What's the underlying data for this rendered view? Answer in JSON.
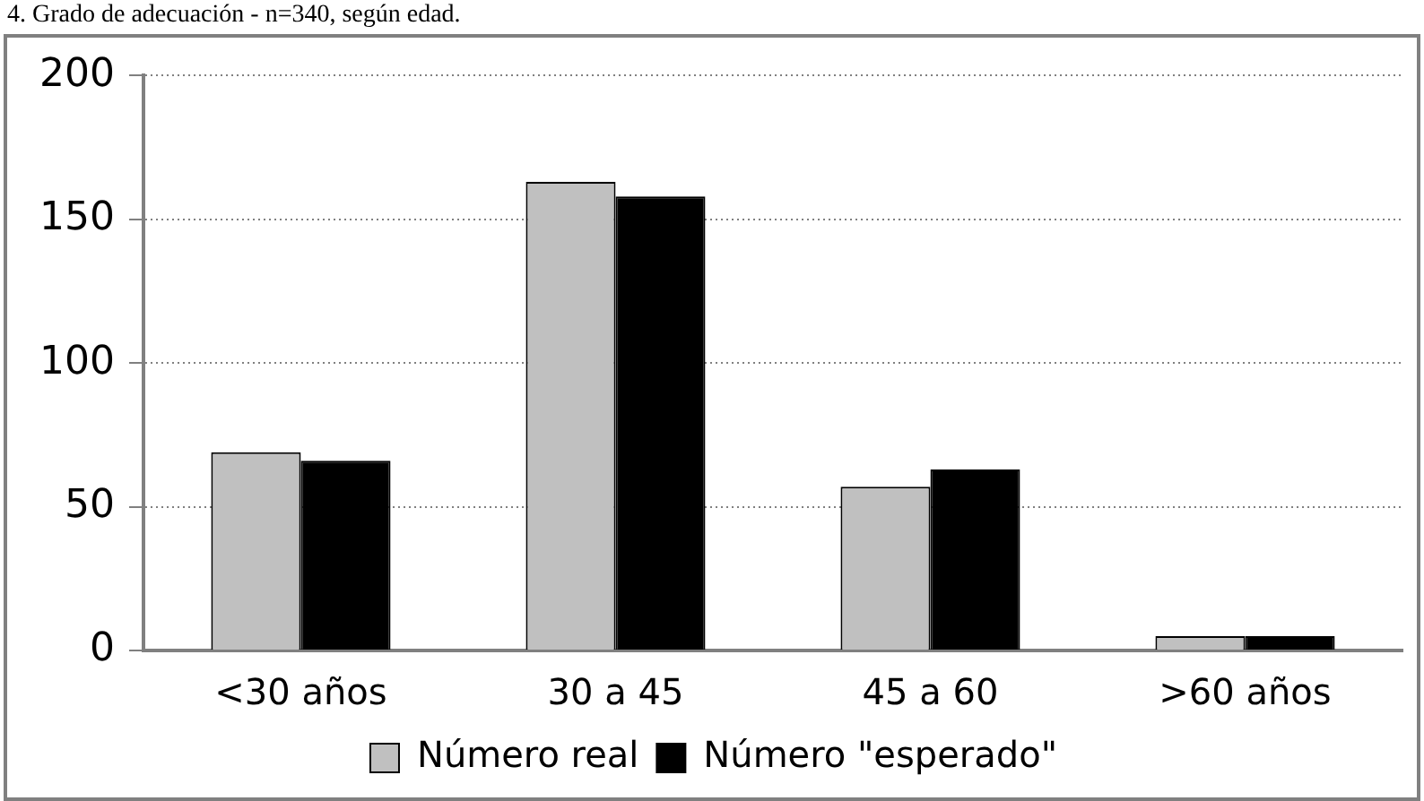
{
  "chart_data": {
    "type": "bar",
    "title": "4. Grado de adecuación - n=340, según edad.",
    "categories": [
      "<30 años",
      "30 a 45",
      "45 a 60",
      ">60 años"
    ],
    "series": [
      {
        "name": "Número real",
        "color": "#c0c0c0",
        "values": [
          69,
          163,
          57,
          5
        ]
      },
      {
        "name": "Número \"esperado\"",
        "color": "#000000",
        "values": [
          66,
          158,
          63,
          5
        ]
      }
    ],
    "ylim": [
      0,
      200
    ],
    "yticks": [
      0,
      50,
      100,
      150,
      200
    ],
    "grid": "y",
    "legend": "bottom"
  }
}
